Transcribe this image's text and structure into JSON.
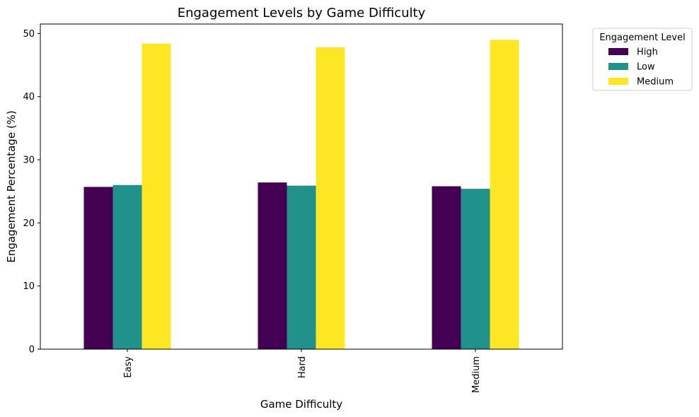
{
  "chart_data": {
    "type": "bar",
    "title": "Engagement Levels by Game Difficulty",
    "xlabel": "Game Difficulty",
    "ylabel": "Engagement Percentage (%)",
    "categories": [
      "Easy",
      "Hard",
      "Medium"
    ],
    "ylim": [
      0,
      51.5
    ],
    "yticks": [
      0,
      10,
      20,
      30,
      40,
      50
    ],
    "grid": false,
    "legend": {
      "title": "Engagement Level",
      "placement": "outside-top-right"
    },
    "series": [
      {
        "name": "High",
        "color": "#440154",
        "values": [
          25.7,
          26.4,
          25.8
        ]
      },
      {
        "name": "Low",
        "color": "#21918c",
        "values": [
          26.0,
          25.9,
          25.4
        ]
      },
      {
        "name": "Medium",
        "color": "#fde725",
        "values": [
          48.4,
          47.8,
          49.0
        ]
      }
    ]
  }
}
